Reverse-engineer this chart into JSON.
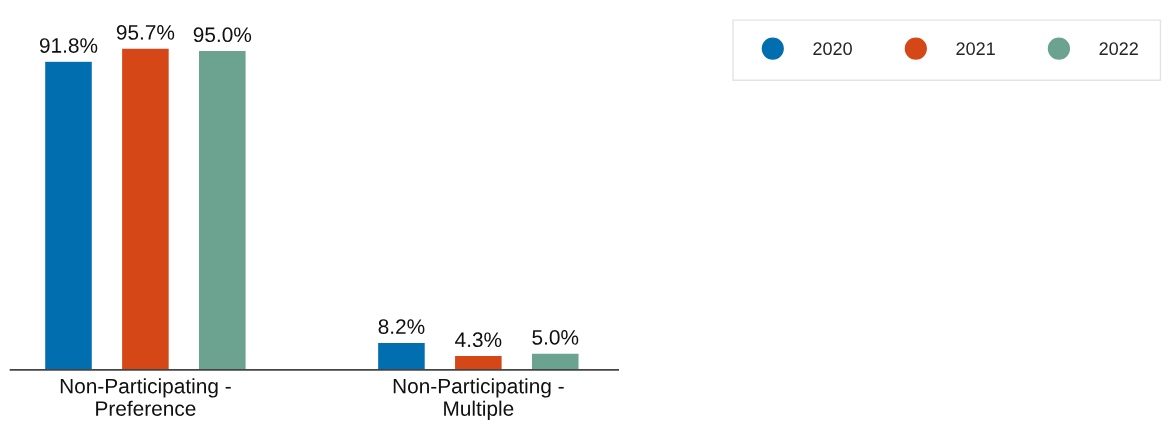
{
  "chart_data": {
    "type": "bar",
    "categories": [
      "Non-Participating - Preference",
      "Non-Participating - Multiple"
    ],
    "series": [
      {
        "name": "2020",
        "color": "#006eaf",
        "values": [
          91.8,
          8.2
        ],
        "value_labels": [
          "91.8%",
          "8.2%"
        ]
      },
      {
        "name": "2021",
        "color": "#d64717",
        "values": [
          95.7,
          4.3
        ],
        "value_labels": [
          "95.7%",
          "4.3%"
        ]
      },
      {
        "name": "2022",
        "color": "#6ba290",
        "values": [
          95.0,
          5.0
        ],
        "value_labels": [
          "95.0%",
          "5.0%"
        ]
      }
    ],
    "legend": "top right",
    "grid": false
  }
}
